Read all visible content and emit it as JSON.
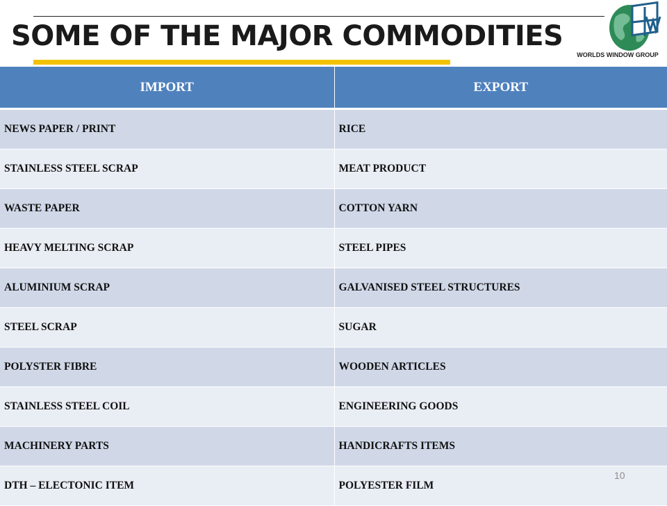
{
  "slide": {
    "title": "SOME OF THE MAJOR COMMODITIES",
    "page_number": "10",
    "logo": {
      "text": "WORLDS WINDOW GROUP",
      "icon": "globe-window-icon",
      "globe_color": "#2e8b57",
      "window_color": "#1f5f8b"
    },
    "accent_color": "#f2c200"
  },
  "table": {
    "headers": [
      "IMPORT",
      "EXPORT"
    ],
    "header_color": "#4f81bd",
    "row_colors": [
      "#d0d8e8",
      "#e9edf4"
    ],
    "rows": [
      [
        "NEWS PAPER / PRINT",
        "RICE"
      ],
      [
        "STAINLESS STEEL SCRAP",
        "MEAT PRODUCT"
      ],
      [
        "WASTE PAPER",
        "COTTON YARN"
      ],
      [
        "HEAVY MELTING SCRAP",
        "STEEL PIPES"
      ],
      [
        "ALUMINIUM SCRAP",
        "GALVANISED STEEL STRUCTURES"
      ],
      [
        "STEEL SCRAP",
        "SUGAR"
      ],
      [
        "POLYSTER FIBRE",
        "WOODEN ARTICLES"
      ],
      [
        "STAINLESS STEEL COIL",
        "ENGINEERING GOODS"
      ],
      [
        "MACHINERY PARTS",
        "HANDICRAFTS ITEMS"
      ],
      [
        "DTH – ELECTONIC ITEM",
        "POLYESTER FILM"
      ]
    ]
  }
}
